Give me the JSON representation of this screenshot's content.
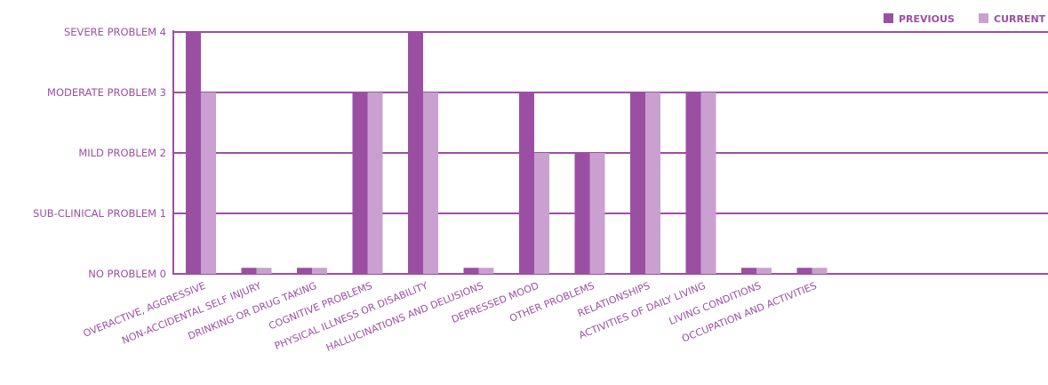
{
  "chart_data": {
    "type": "bar",
    "categories": [
      "OVERACTIVE, AGGRESSIVE",
      "NON-ACCIDENTAL SELF INJURY",
      "DRINKING OR DRUG TAKING",
      "COGNITIVE PROBLEMS",
      "PHYSICAL ILLNESS OR DISABILITY",
      "HALLUCINATIONS AND DELUSIONS",
      "DEPRESSED MOOD",
      "OTHER PROBLEMS",
      "RELATIONSHIPS",
      "ACTIVITIES OF DAILY LIVING",
      "LIVING CONDITIONS",
      "OCCUPATION AND ACTIVITIES"
    ],
    "series": [
      {
        "name": "PREVIOUS",
        "color": "#9b4fa3",
        "values": [
          4,
          0.1,
          0.1,
          3,
          4,
          0.1,
          3,
          2,
          3,
          3,
          0.1,
          0.1
        ]
      },
      {
        "name": "CURRENT",
        "color": "#c9a0cf",
        "values": [
          3,
          0.1,
          0.1,
          3,
          3,
          0.1,
          2,
          2,
          3,
          3,
          0.1,
          0.1
        ]
      }
    ],
    "yticks": [
      {
        "value": 0,
        "label": "NO PROBLEM 0"
      },
      {
        "value": 1,
        "label": "SUB-CLINICAL PROBLEM 1"
      },
      {
        "value": 2,
        "label": "MILD PROBLEM 2"
      },
      {
        "value": 3,
        "label": "MODERATE PROBLEM 3"
      },
      {
        "value": 4,
        "label": "SEVERE PROBLEM 4"
      }
    ],
    "ylim": [
      0,
      4
    ],
    "grid": true,
    "legend_position": "top-right",
    "axis_color": "#9b4fa3",
    "title": "",
    "xlabel": "",
    "ylabel": ""
  }
}
